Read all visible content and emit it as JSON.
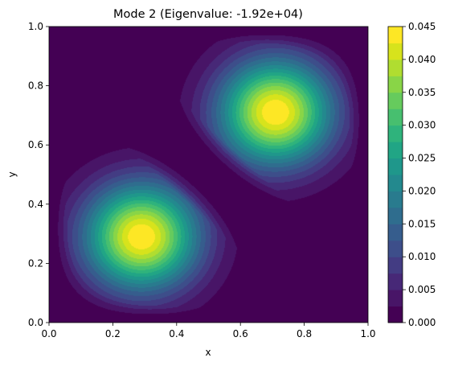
{
  "chart_data": {
    "type": "heatmap",
    "subtype": "filled-contour",
    "title": "Mode 2 (Eigenvalue: -1.92e+04)",
    "xlabel": "x",
    "ylabel": "y",
    "xlim": [
      0.0,
      1.0
    ],
    "ylim": [
      0.0,
      1.0
    ],
    "x_ticks": [
      "0.0",
      "0.2",
      "0.4",
      "0.6",
      "0.8",
      "1.0"
    ],
    "y_ticks": [
      "0.0",
      "0.2",
      "0.4",
      "0.6",
      "0.8",
      "1.0"
    ],
    "colormap": "viridis",
    "colorbar": {
      "min": 0.0,
      "max": 0.045,
      "levels": 18,
      "ticks": [
        "0.000",
        "0.005",
        "0.010",
        "0.015",
        "0.020",
        "0.025",
        "0.030",
        "0.035",
        "0.040",
        "0.045"
      ]
    },
    "field": {
      "description": "two peaks mirrored across the diagonal, zero along the line y = 1 - x",
      "peaks": [
        {
          "x": 0.29,
          "y": 0.29,
          "value": 0.045
        },
        {
          "x": 0.71,
          "y": 0.71,
          "value": 0.045
        }
      ]
    },
    "grid": false
  }
}
